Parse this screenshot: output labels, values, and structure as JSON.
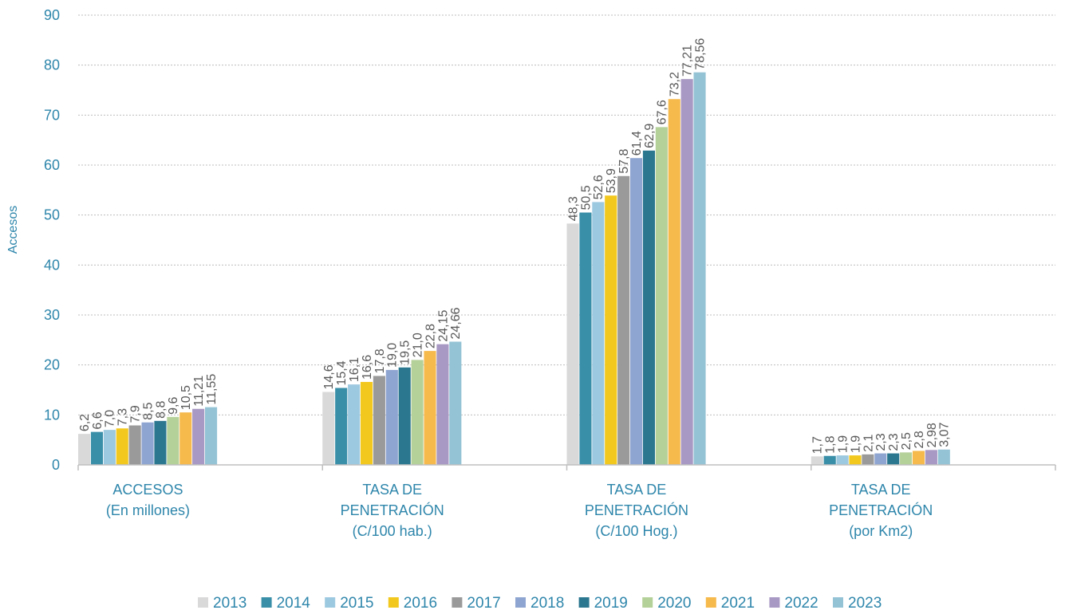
{
  "chart_data": {
    "type": "bar",
    "ylabel": "Accesos",
    "ylim": [
      0,
      90
    ],
    "yticks": [
      0,
      10,
      20,
      30,
      40,
      50,
      60,
      70,
      80,
      90
    ],
    "grid": true,
    "legend_position": "bottom",
    "categories": [
      [
        "ACCESOS",
        "(En millones)"
      ],
      [
        "TASA DE",
        "PENETRACIÓN",
        "(C/100 hab.)"
      ],
      [
        "TASA DE",
        "PENETRACIÓN",
        "(C/100 Hog.)"
      ],
      [
        "TASA DE",
        "PENETRACIÓN",
        "(por Km2)"
      ]
    ],
    "series": [
      {
        "name": "2013",
        "color": "#d9d9d9",
        "values": [
          6.2,
          14.6,
          48.3,
          1.7
        ],
        "labels": [
          "6,2",
          "14,6",
          "48,3",
          "1,7"
        ]
      },
      {
        "name": "2014",
        "color": "#3a8fa8",
        "values": [
          6.6,
          15.4,
          50.5,
          1.8
        ],
        "labels": [
          "6,6",
          "15,4",
          "50,5",
          "1,8"
        ]
      },
      {
        "name": "2015",
        "color": "#9dc9e0",
        "values": [
          7.0,
          16.1,
          52.6,
          1.9
        ],
        "labels": [
          "7,0",
          "16,1",
          "52,6",
          "1,9"
        ]
      },
      {
        "name": "2016",
        "color": "#f2c81e",
        "values": [
          7.3,
          16.6,
          53.9,
          1.9
        ],
        "labels": [
          "7,3",
          "16,6",
          "53,9",
          "1,9"
        ]
      },
      {
        "name": "2017",
        "color": "#9a9a9a",
        "values": [
          7.9,
          17.8,
          57.8,
          2.1
        ],
        "labels": [
          "7,9",
          "17,8",
          "57,8",
          "2,1"
        ]
      },
      {
        "name": "2018",
        "color": "#8fa5d1",
        "values": [
          8.5,
          19.0,
          61.4,
          2.3
        ],
        "labels": [
          "8,5",
          "19,0",
          "61,4",
          "2,3"
        ]
      },
      {
        "name": "2019",
        "color": "#2b7790",
        "values": [
          8.8,
          19.5,
          62.9,
          2.3
        ],
        "labels": [
          "8,8",
          "19,5",
          "62,9",
          "2,3"
        ]
      },
      {
        "name": "2020",
        "color": "#b5d19a",
        "values": [
          9.6,
          21.0,
          67.6,
          2.5
        ],
        "labels": [
          "9,6",
          "21,0",
          "67,6",
          "2,5"
        ]
      },
      {
        "name": "2021",
        "color": "#f6b94c",
        "values": [
          10.5,
          22.8,
          73.2,
          2.8
        ],
        "labels": [
          "10,5",
          "22,8",
          "73,2",
          "2,8"
        ]
      },
      {
        "name": "2022",
        "color": "#a898c4",
        "values": [
          11.21,
          24.15,
          77.21,
          2.98
        ],
        "labels": [
          "11,21",
          "24,15",
          "77,21",
          "2,98"
        ]
      },
      {
        "name": "2023",
        "color": "#94c3d6",
        "values": [
          11.55,
          24.66,
          78.56,
          3.07
        ],
        "labels": [
          "11,55",
          "24,66",
          "78,56",
          "3,07"
        ]
      }
    ]
  }
}
